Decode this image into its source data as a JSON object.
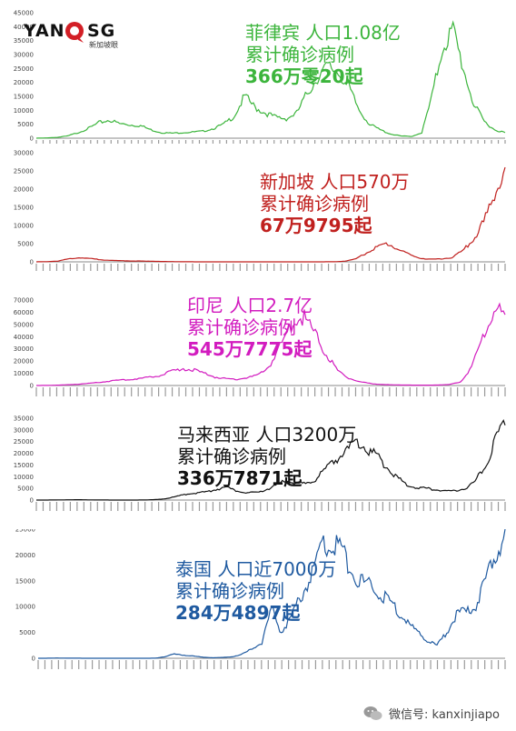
{
  "chart_data": [
    {
      "type": "line",
      "color": "#3cb53c",
      "annotation": [
        "菲律宾 人口1.08亿",
        "累计确诊病例",
        "366万零20起"
      ],
      "yticks": [
        0,
        5000,
        10000,
        15000,
        20000,
        25000,
        30000,
        35000,
        40000,
        45000
      ],
      "ylim": [
        0,
        45000
      ],
      "series": [
        {
          "values": [
            10,
            100,
            300,
            800,
            2000,
            3500,
            5500,
            6500,
            5200,
            4800,
            4500,
            3000,
            2000,
            1800,
            2000,
            2200,
            2500,
            3500,
            5000,
            8000,
            15000,
            11000,
            9000,
            7500,
            7000,
            9000,
            16000,
            22000,
            25500,
            24000,
            18000,
            10000,
            5000,
            3000,
            1500,
            800,
            600,
            2000,
            15000,
            33000,
            38500,
            25000,
            12000,
            6000,
            3000,
            2000
          ]
        }
      ]
    },
    {
      "type": "line",
      "color": "#c0201e",
      "annotation": [
        "新加坡 人口570万",
        "累计确诊病例",
        "67万9795起"
      ],
      "yticks": [
        0,
        5000,
        10000,
        15000,
        20000,
        25000,
        30000
      ],
      "ylim": [
        0,
        30000
      ],
      "series": [
        {
          "values": [
            10,
            50,
            200,
            800,
            1200,
            900,
            600,
            400,
            300,
            250,
            200,
            150,
            100,
            50,
            20,
            10,
            10,
            10,
            10,
            10,
            10,
            10,
            10,
            10,
            10,
            10,
            10,
            10,
            30,
            200,
            800,
            2500,
            4000,
            5000,
            3500,
            2000,
            1000,
            700,
            800,
            1200,
            3000,
            6000,
            11000,
            18000,
            26000
          ]
        }
      ]
    },
    {
      "type": "line",
      "color": "#d21cbf",
      "annotation": [
        "印尼 人口2.7亿",
        "累计确诊病例",
        "545万7775起"
      ],
      "yticks": [
        0,
        10000,
        20000,
        30000,
        40000,
        50000,
        60000,
        70000
      ],
      "ylim": [
        0,
        70000
      ],
      "series": [
        {
          "values": [
            0,
            100,
            300,
            700,
            1200,
            2000,
            3000,
            4000,
            4800,
            5500,
            6500,
            8000,
            11000,
            14000,
            13000,
            10000,
            7000,
            5500,
            5000,
            6500,
            9000,
            18000,
            35000,
            52000,
            56000,
            42000,
            25000,
            12000,
            6000,
            3000,
            1500,
            800,
            500,
            400,
            300,
            300,
            400,
            800,
            3000,
            15000,
            40000,
            62000,
            58000
          ]
        }
      ]
    },
    {
      "type": "line",
      "color": "#111111",
      "annotation": [
        "马来西亚 人口3200万",
        "累计确诊病例",
        "336万7871起"
      ],
      "yticks": [
        0,
        5000,
        10000,
        15000,
        20000,
        25000,
        30000,
        35000
      ],
      "ylim": [
        0,
        35000
      ],
      "series": [
        {
          "values": [
            0,
            10,
            50,
            100,
            150,
            100,
            50,
            20,
            10,
            10,
            10,
            50,
            200,
            600,
            1500,
            2500,
            3000,
            3500,
            4500,
            5500,
            4000,
            3000,
            3200,
            4500,
            6000,
            8500,
            7500,
            7000,
            9000,
            13000,
            17000,
            21000,
            24000,
            23000,
            19000,
            15000,
            10000,
            7000,
            5500,
            5000,
            4500,
            4000,
            4000,
            5000,
            8000,
            15000,
            25000,
            32000
          ]
        }
      ]
    },
    {
      "type": "line",
      "color": "#1f5aa0",
      "annotation": [
        "泰国 人口近7000万",
        "累计确诊病例",
        "284万4897起"
      ],
      "yticks": [
        0,
        5000,
        10000,
        15000,
        20000,
        25000
      ],
      "ylim": [
        0,
        25000
      ],
      "series": [
        {
          "values": [
            0,
            10,
            50,
            20,
            10,
            5,
            5,
            5,
            5,
            5,
            5,
            5,
            10,
            300,
            800,
            600,
            400,
            200,
            100,
            150,
            300,
            800,
            1800,
            3000,
            9500,
            5000,
            8000,
            12000,
            16000,
            21000,
            23000,
            21000,
            18000,
            15000,
            14000,
            13000,
            11000,
            9000,
            7000,
            5000,
            3500,
            2500,
            5000,
            8500,
            9000,
            10000,
            15000,
            20000,
            25000
          ]
        }
      ]
    }
  ],
  "logo": {
    "main": "YAN",
    "tail": "SG",
    "sub": "新加坡眼"
  },
  "watermark": {
    "label": "微信号: kanxinjiapo"
  }
}
